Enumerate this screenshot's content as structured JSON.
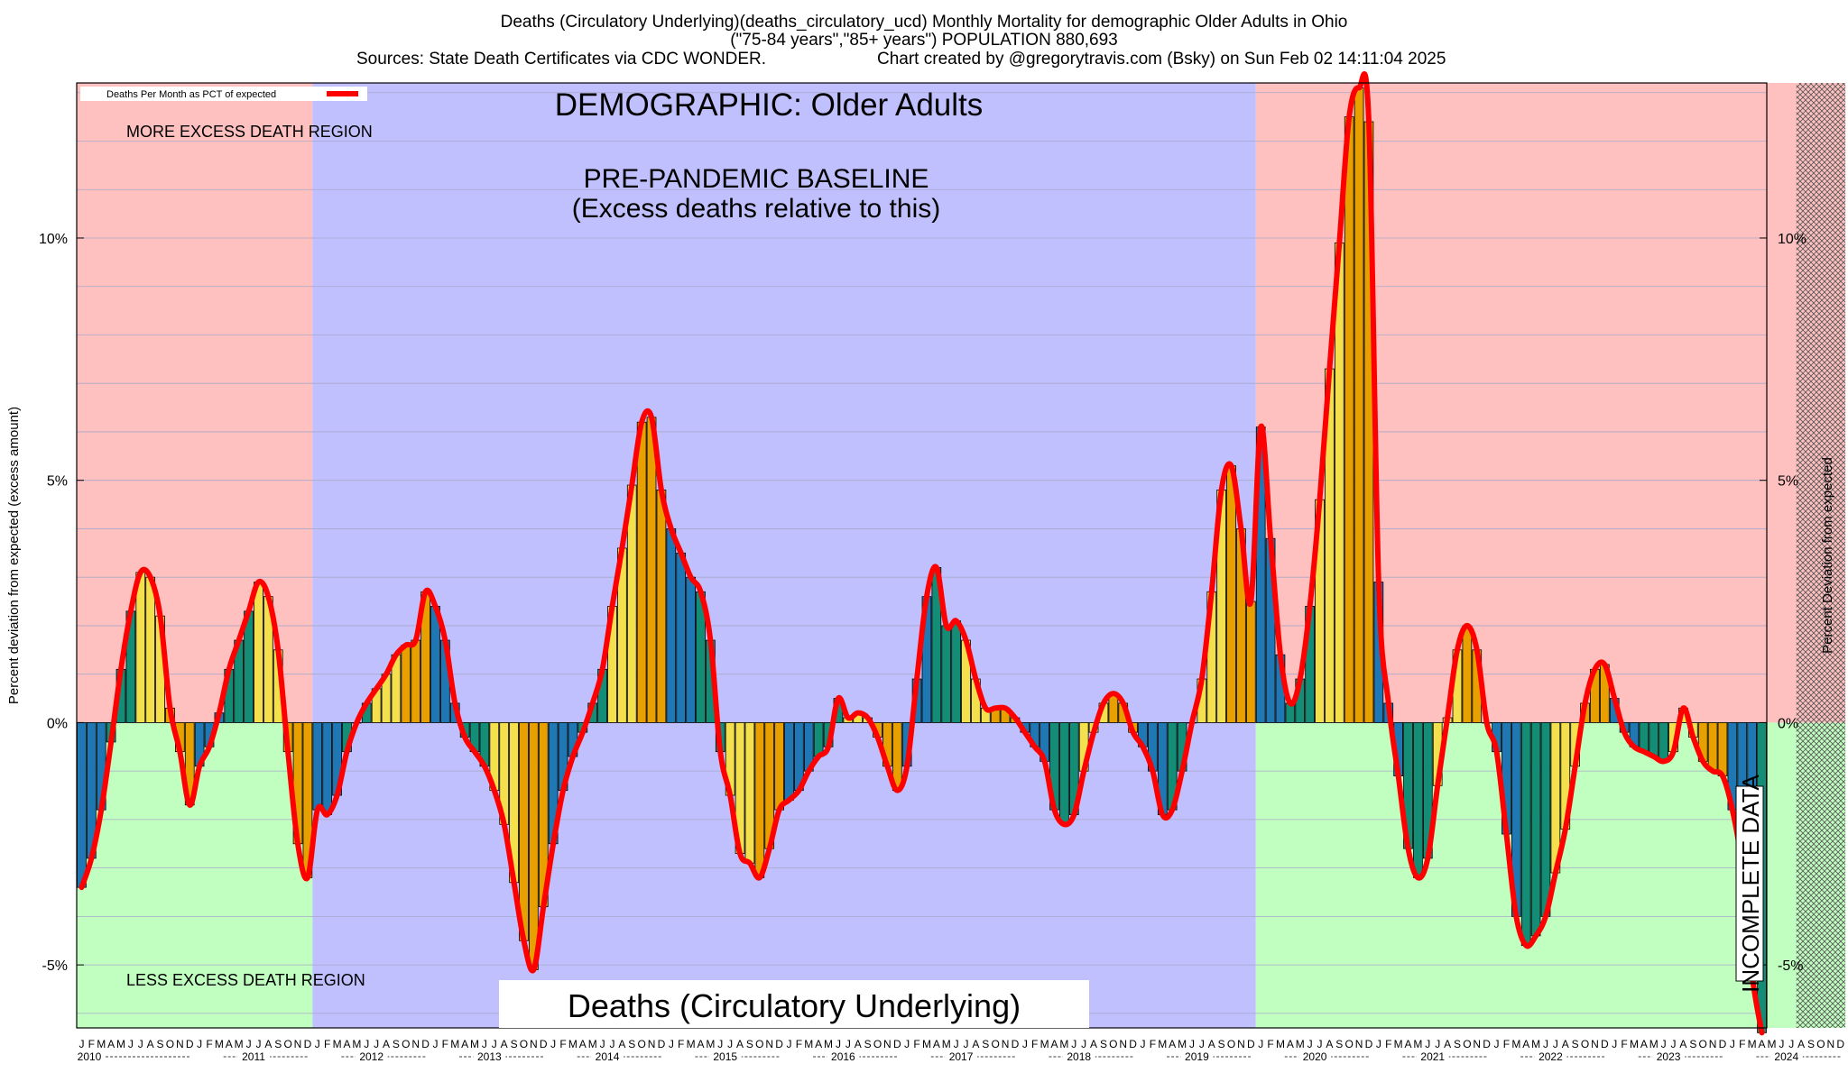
{
  "header": {
    "line1": "Deaths (Circulatory Underlying)(deaths_circulatory_ucd) Monthly Mortality for demographic Older Adults in Ohio",
    "line2": "(\"75-84 years\",\"85+ years\") POPULATION 880,693",
    "line3_left": "Sources: State Death Certificates via CDC WONDER.",
    "line3_right": "Chart created by @gregorytravis.com (Bsky) on Sun Feb 02 14:11:04 2025"
  },
  "annotations": {
    "demographic": "DEMOGRAPHIC: Older Adults",
    "baseline1": "PRE-PANDEMIC BASELINE",
    "baseline2": "(Excess deaths relative to this)",
    "more_region": "MORE EXCESS DEATH REGION",
    "less_region": "LESS EXCESS DEATH REGION",
    "bottom_title": "Deaths (Circulatory Underlying)",
    "incomplete": "INCOMPLETE DATA"
  },
  "legend": {
    "label": "Deaths Per Month as PCT of expected",
    "line_color": "#ff0000"
  },
  "colors": {
    "excess_region": "#ffc0c0",
    "deficit_region": "#c0ffc0",
    "baseline_region": "#c0c0ff",
    "line": "#ff0000",
    "bar_palette": [
      "#1f77b4",
      "#138d75",
      "#f4e04d",
      "#e8a000"
    ]
  },
  "chart_data": {
    "type": "bar",
    "title": "",
    "ylabel_left": "Percent deviation from expected (excess amount)",
    "ylabel_right": "Percent Deviation from expected",
    "ylim": [
      -6.3,
      13.2
    ],
    "yticks": [
      {
        "value": -5,
        "label": "-5%"
      },
      {
        "value": 0,
        "label": "0%"
      },
      {
        "value": 5,
        "label": "5%"
      },
      {
        "value": 10,
        "label": "10%"
      }
    ],
    "grid": true,
    "legend_position": "top-left",
    "start": "2010-01",
    "month_letters": [
      "J",
      "F",
      "M",
      "A",
      "M",
      "J",
      "J",
      "A",
      "S",
      "O",
      "N",
      "D"
    ],
    "year_labels": [
      "2010",
      "2011",
      "2012",
      "2013",
      "2014",
      "2015",
      "2016",
      "2017",
      "2018",
      "2019",
      "2020",
      "2021",
      "2022",
      "2023",
      "2024"
    ],
    "regions": [
      {
        "kind": "excess",
        "from": "2010-01",
        "to": "2011-12"
      },
      {
        "kind": "baseline",
        "from": "2012-01",
        "to": "2019-12"
      },
      {
        "kind": "excess",
        "from": "2020-01",
        "to": "2024-07"
      },
      {
        "kind": "incomplete",
        "from": "2024-08",
        "to": "2024-12"
      }
    ],
    "values": [
      -3.4,
      -2.8,
      -1.8,
      -0.4,
      1.1,
      2.3,
      3.1,
      3.0,
      2.2,
      0.3,
      -0.6,
      -1.7,
      -0.9,
      -0.5,
      0.2,
      1.1,
      1.7,
      2.3,
      2.9,
      2.6,
      1.5,
      -0.6,
      -2.5,
      -3.2,
      -1.8,
      -1.9,
      -1.5,
      -0.6,
      0.0,
      0.4,
      0.7,
      1.0,
      1.4,
      1.6,
      1.7,
      2.7,
      2.4,
      1.7,
      0.4,
      -0.3,
      -0.6,
      -0.9,
      -1.4,
      -2.1,
      -3.3,
      -4.5,
      -5.1,
      -3.8,
      -2.5,
      -1.4,
      -0.7,
      -0.2,
      0.4,
      1.1,
      2.4,
      3.6,
      4.9,
      6.2,
      6.3,
      4.8,
      4.0,
      3.5,
      3.0,
      2.7,
      1.7,
      -0.6,
      -1.5,
      -2.7,
      -2.9,
      -3.2,
      -2.6,
      -1.8,
      -1.6,
      -1.4,
      -1.0,
      -0.7,
      -0.5,
      0.5,
      0.1,
      0.2,
      0.1,
      -0.3,
      -0.9,
      -1.4,
      -0.9,
      0.9,
      2.6,
      3.2,
      2.0,
      2.1,
      1.7,
      0.9,
      0.3,
      0.3,
      0.3,
      0.1,
      -0.2,
      -0.5,
      -0.8,
      -1.8,
      -2.1,
      -1.9,
      -1.0,
      -0.2,
      0.4,
      0.6,
      0.4,
      -0.2,
      -0.5,
      -1.0,
      -1.9,
      -1.8,
      -1.0,
      0.0,
      0.9,
      2.7,
      4.8,
      5.3,
      4.0,
      2.5,
      6.1,
      3.8,
      1.4,
      0.4,
      0.9,
      2.4,
      4.6,
      7.3,
      9.9,
      12.5,
      13.1,
      12.4,
      2.9,
      0.4,
      -1.1,
      -2.6,
      -3.2,
      -2.8,
      -1.3,
      0.1,
      1.5,
      2.0,
      1.5,
      0.0,
      -0.6,
      -2.3,
      -4.0,
      -4.6,
      -4.4,
      -4.0,
      -3.1,
      -2.2,
      -0.9,
      0.4,
      1.1,
      1.2,
      0.5,
      -0.2,
      -0.5,
      -0.6,
      -0.7,
      -0.8,
      -0.6,
      0.3,
      -0.3,
      -0.8,
      -1.0,
      -1.1,
      -1.8,
      -3.0,
      -5.2,
      -6.4
    ]
  }
}
